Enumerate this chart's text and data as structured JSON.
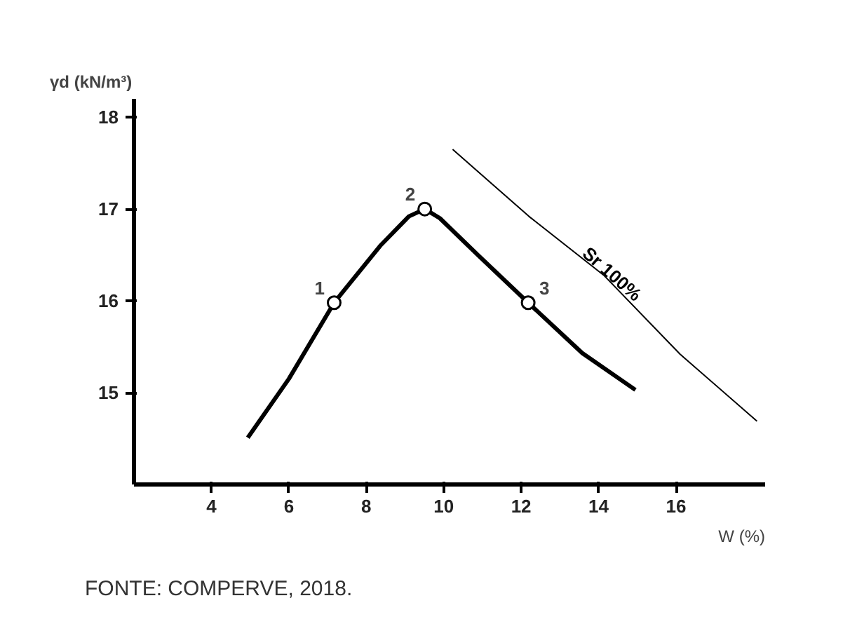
{
  "chart_data": {
    "type": "line",
    "xlabel": "W (%)",
    "ylabel": "γd (kN/m³)",
    "xlim": [
      2,
      18.3
    ],
    "ylim": [
      14,
      18.2
    ],
    "xticks": [
      4,
      6,
      8,
      10,
      12,
      14,
      16
    ],
    "yticks": [
      15,
      16,
      17,
      18
    ],
    "grid": false,
    "series": [
      {
        "color": "#000000",
        "x": [
          4.94,
          6.0,
          7.17,
          8.36,
          9.1,
          9.51,
          9.9,
          10.88,
          12.18,
          13.58,
          14.95
        ],
        "values": [
          14.51,
          15.15,
          15.98,
          16.6,
          16.92,
          17.0,
          16.9,
          16.5,
          15.98,
          15.43,
          15.03
        ],
        "marker": "none"
      },
      {
        "type": "scatter",
        "color": "#000000",
        "x": [
          7.17,
          9.51,
          12.18
        ],
        "values": [
          15.98,
          17.0,
          15.98
        ],
        "marker": "circle"
      },
      {
        "name": "Sr 100%",
        "color": "#000000",
        "x": [
          10.23,
          12.2,
          14.13,
          16.1,
          18.09
        ],
        "values": [
          17.65,
          16.92,
          16.28,
          15.42,
          14.69
        ],
        "marker": "none"
      }
    ],
    "annotations": [
      {
        "text": "1",
        "x": 7.17,
        "y": 15.98
      },
      {
        "text": "2",
        "x": 9.51,
        "y": 17.0
      },
      {
        "text": "3",
        "x": 12.18,
        "y": 15.98
      },
      "FONTE: COMPERVE, 2018."
    ]
  }
}
